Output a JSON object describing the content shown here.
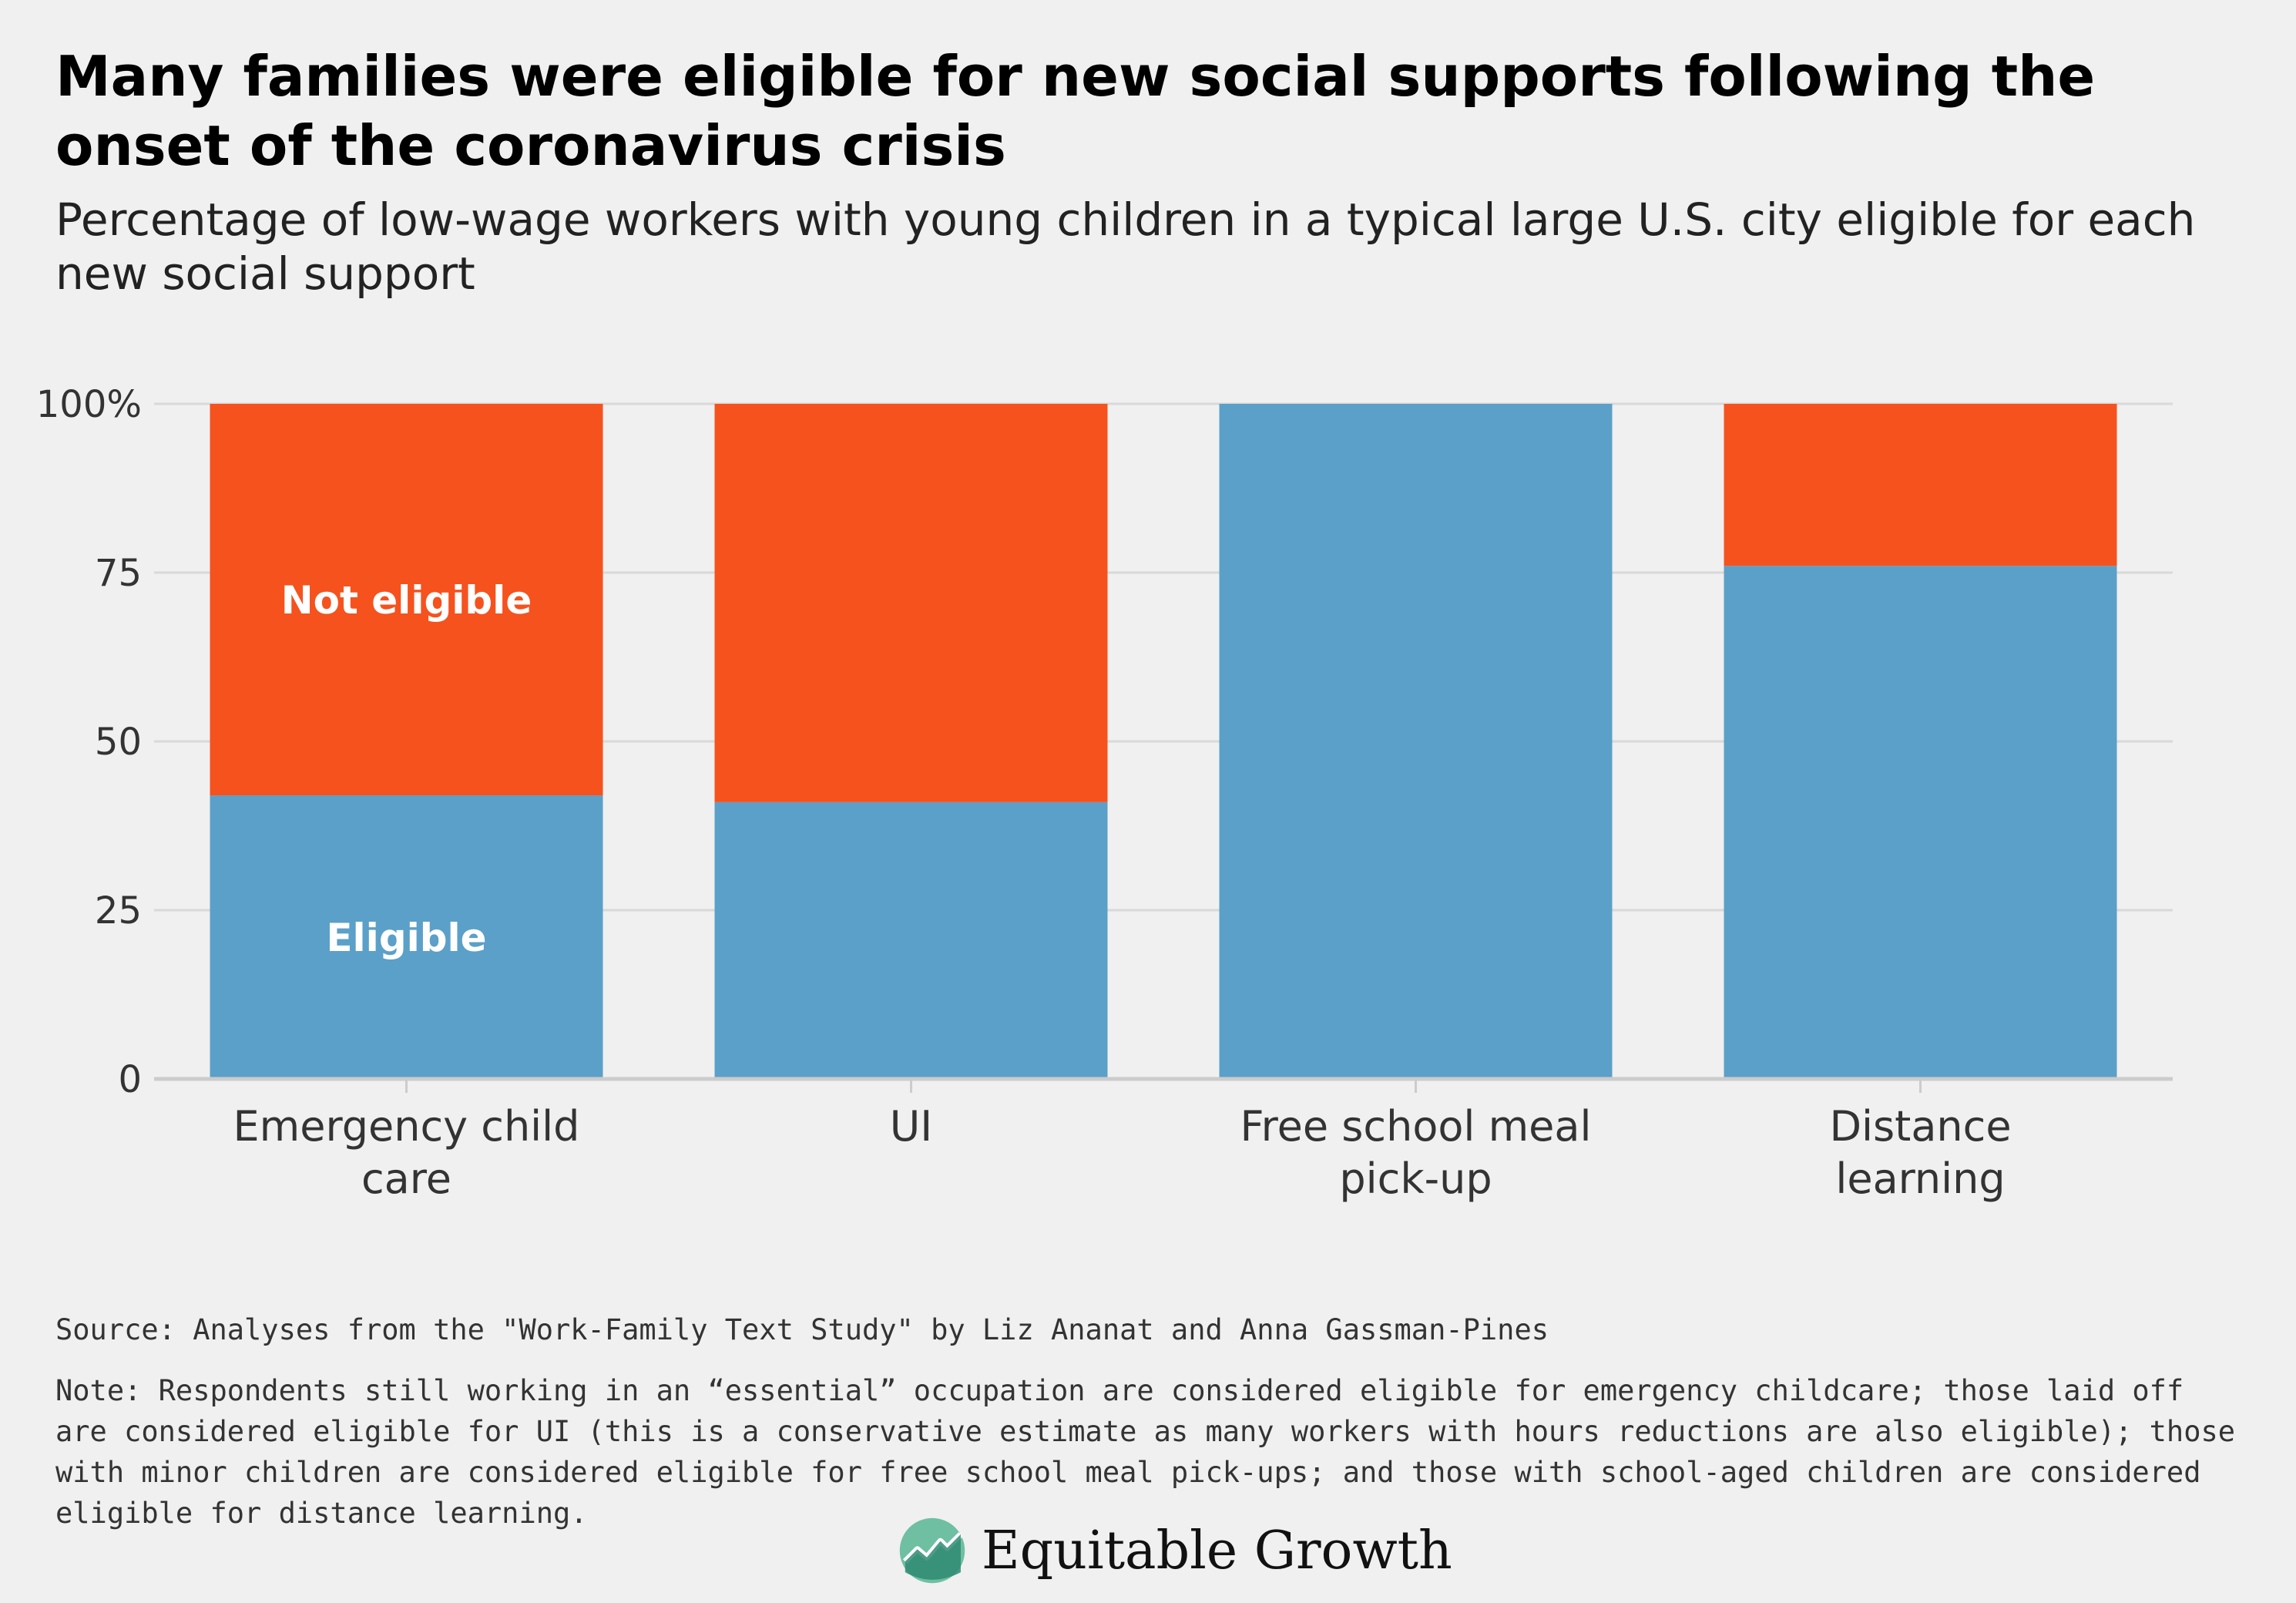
{
  "title": "Many families were eligible for new social supports following the onset of the coronavirus crisis",
  "subtitle": "Percentage of low-wage workers with young children in a typical large U.S. city eligible for each new social support",
  "source": "Source: Analyses from the \"Work-Family Text Study\" by Liz Ananat and Anna Gassman-Pines",
  "note": "Note: Respondents still working in an “essential” occupation are considered eligible for emergency childcare; those laid off are considered eligible for UI (this is a conservative estimate as many workers with hours reductions are also eligible); those with minor children are considered eligible for free school meal pick-ups; and those with school-aged children are considered eligible for distance learning.",
  "logo": {
    "icon": "equitable-growth-logo-icon",
    "text": "Equitable Growth"
  },
  "chart_data": {
    "type": "bar",
    "stacked": true,
    "categories": [
      [
        "Emergency child",
        "care"
      ],
      [
        "UI"
      ],
      [
        "Free school meal",
        "pick-up"
      ],
      [
        "Distance",
        "learning"
      ]
    ],
    "series": [
      {
        "name": "Eligible",
        "color": "#5ba0c8",
        "values": [
          42,
          41,
          100,
          76
        ]
      },
      {
        "name": "Not eligible",
        "color": "#f5521e",
        "values": [
          58,
          59,
          0,
          24
        ]
      }
    ],
    "y_ticks": [
      {
        "value": 0,
        "label": "0"
      },
      {
        "value": 25,
        "label": "25"
      },
      {
        "value": 50,
        "label": "50"
      },
      {
        "value": 75,
        "label": "75"
      },
      {
        "value": 100,
        "label": "100%"
      }
    ],
    "ylim": [
      0,
      100
    ],
    "grid": true,
    "legend": "inline labels on first bar",
    "gridline_color": "#d9d9d9",
    "axis_color": "#cccccc"
  }
}
